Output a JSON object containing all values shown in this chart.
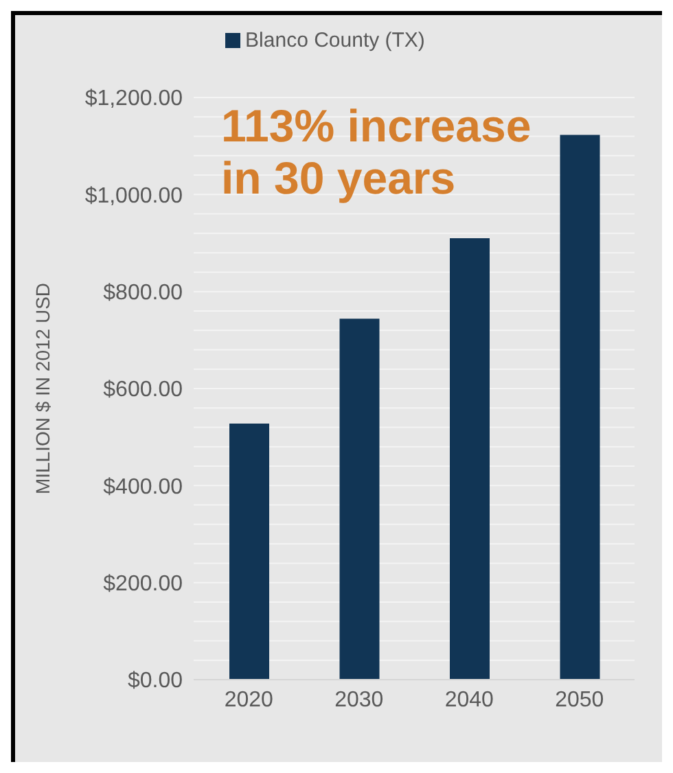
{
  "chart_data": {
    "type": "bar",
    "ylabel": "MILLION $ IN 2012 USD",
    "categories": [
      "2020",
      "2030",
      "2040",
      "2050"
    ],
    "series": [
      {
        "name": "Blanco County (TX)",
        "color": "#113555",
        "values": [
          528,
          744,
          910,
          1123
        ]
      }
    ],
    "ylim": [
      0,
      1200
    ],
    "yticks": [
      {
        "value": 0,
        "label": "$0.00"
      },
      {
        "value": 40,
        "label": null
      },
      {
        "value": 80,
        "label": null
      },
      {
        "value": 120,
        "label": null
      },
      {
        "value": 160,
        "label": null
      },
      {
        "value": 200,
        "label": "$200.00"
      },
      {
        "value": 240,
        "label": null
      },
      {
        "value": 280,
        "label": null
      },
      {
        "value": 320,
        "label": null
      },
      {
        "value": 360,
        "label": null
      },
      {
        "value": 400,
        "label": "$400.00"
      },
      {
        "value": 440,
        "label": null
      },
      {
        "value": 480,
        "label": null
      },
      {
        "value": 520,
        "label": null
      },
      {
        "value": 560,
        "label": null
      },
      {
        "value": 600,
        "label": "$600.00"
      },
      {
        "value": 640,
        "label": null
      },
      {
        "value": 680,
        "label": null
      },
      {
        "value": 720,
        "label": null
      },
      {
        "value": 760,
        "label": null
      },
      {
        "value": 800,
        "label": "$800.00"
      },
      {
        "value": 840,
        "label": null
      },
      {
        "value": 880,
        "label": null
      },
      {
        "value": 920,
        "label": null
      },
      {
        "value": 960,
        "label": null
      },
      {
        "value": 1000,
        "label": "$1,000.00"
      },
      {
        "value": 1040,
        "label": null
      },
      {
        "value": 1080,
        "label": null
      },
      {
        "value": 1120,
        "label": null
      },
      {
        "value": 1160,
        "label": null
      },
      {
        "value": 1200,
        "label": "$1,200.00"
      }
    ],
    "grid": "y",
    "legend": "top",
    "annotations": [
      "113% increase in 30 years"
    ]
  }
}
